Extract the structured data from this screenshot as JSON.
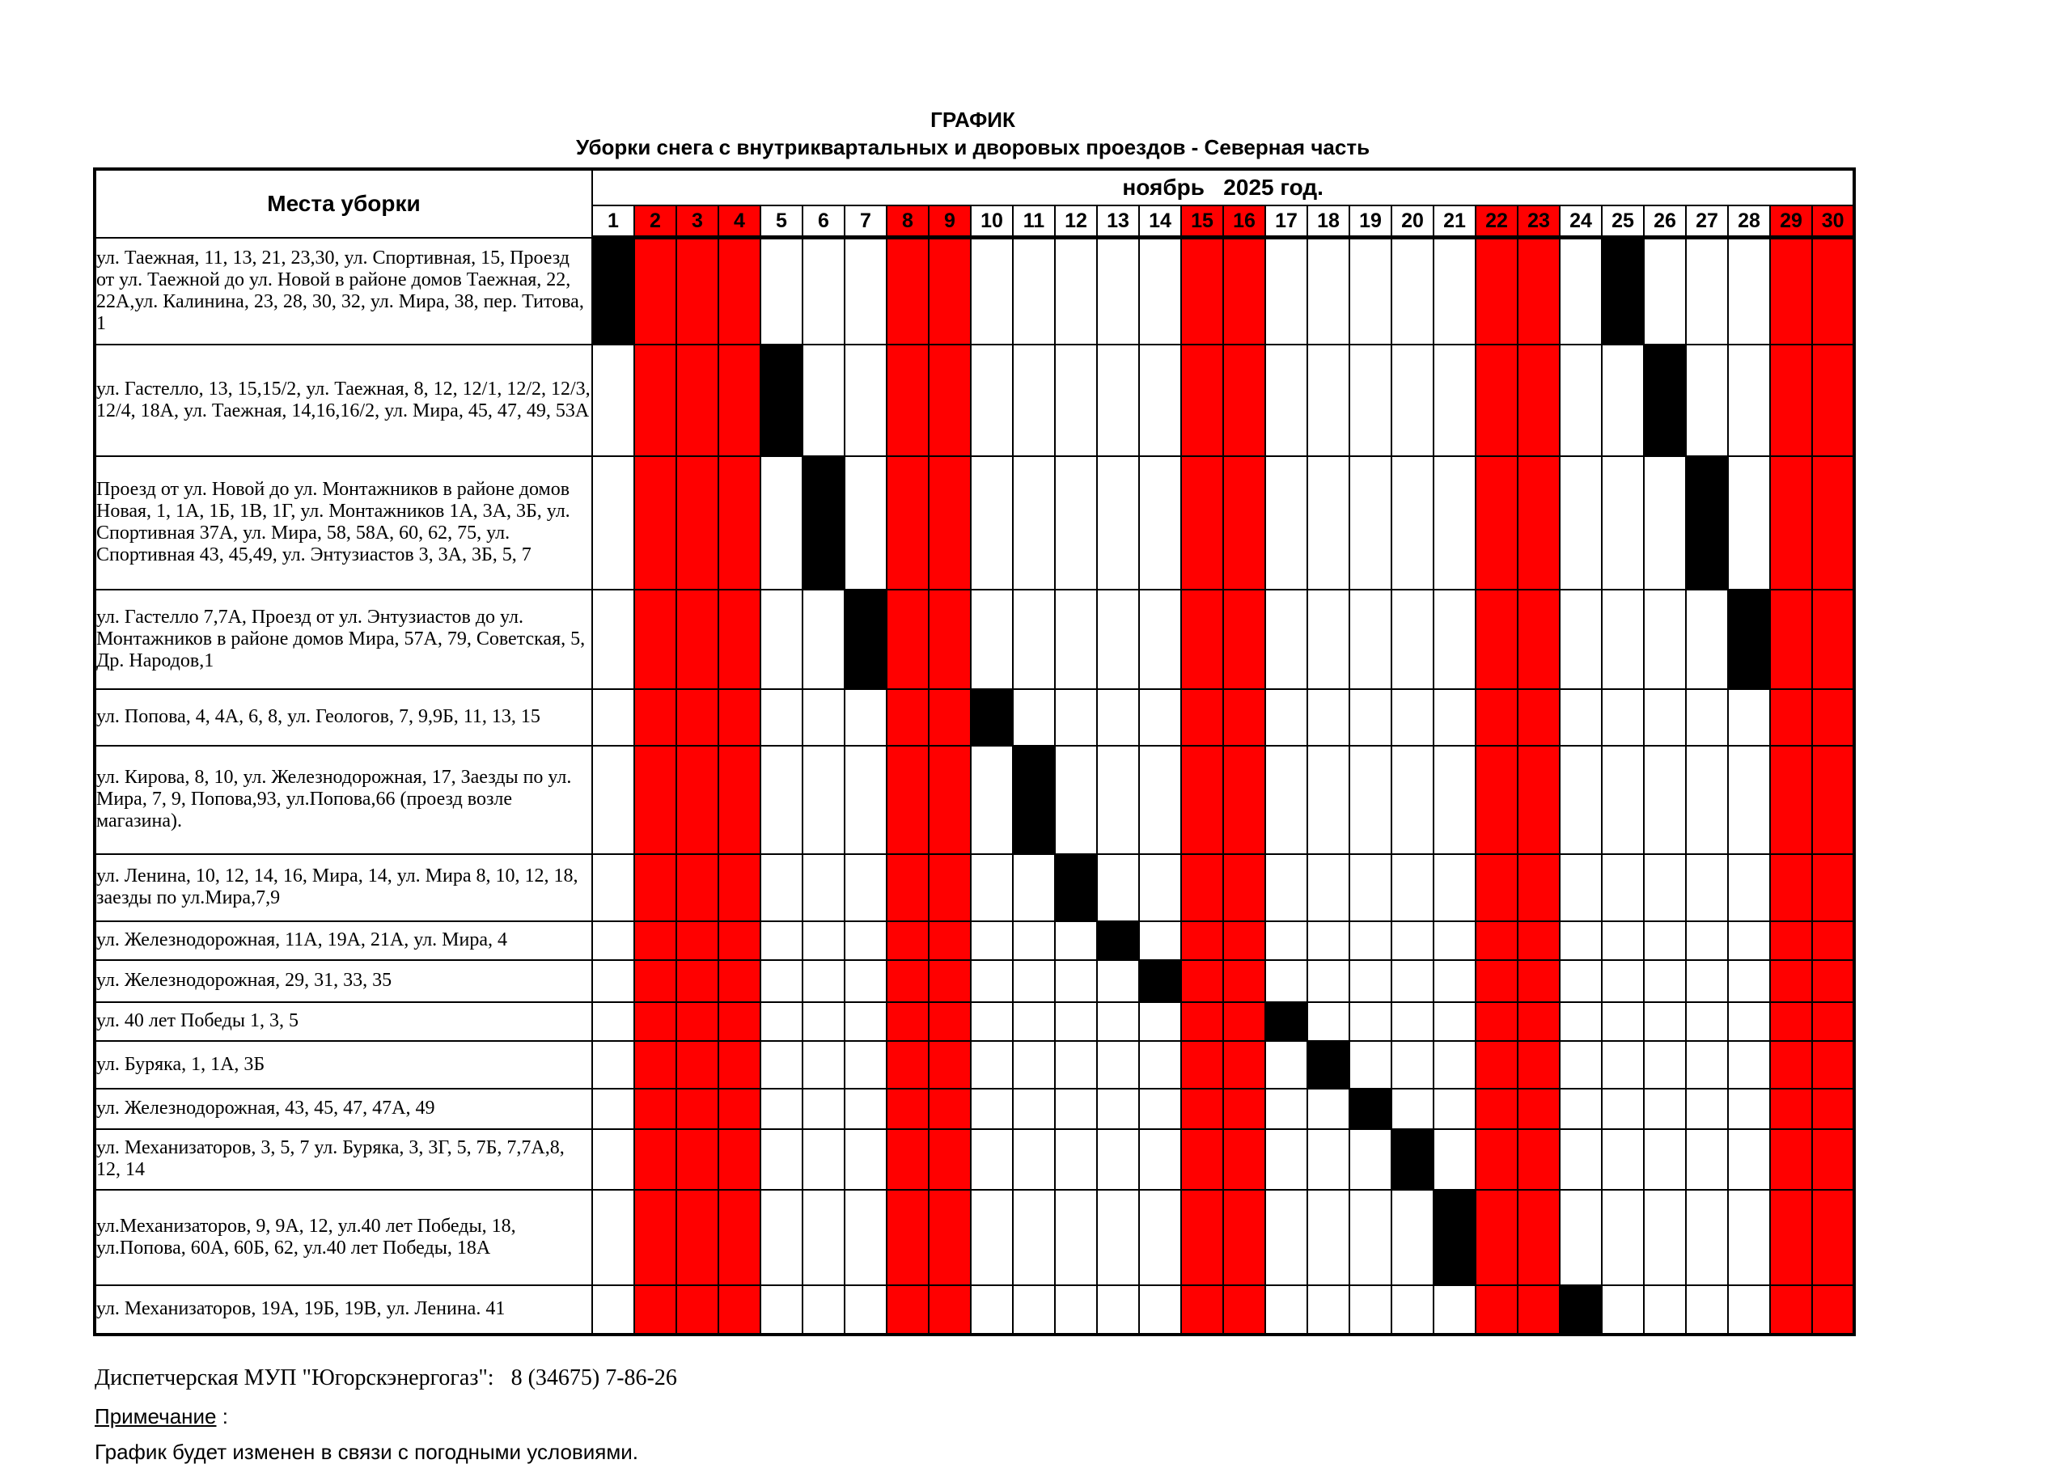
{
  "title": {
    "line1": "ГРАФИК",
    "line2": "Уборки  снега  с внутриквартальных и дворовых проездов - Северная часть"
  },
  "table": {
    "places_header": "Места уборки",
    "month_header": "ноябрь   2025 год.",
    "days": [
      1,
      2,
      3,
      4,
      5,
      6,
      7,
      8,
      9,
      10,
      11,
      12,
      13,
      14,
      15,
      16,
      17,
      18,
      19,
      20,
      21,
      22,
      23,
      24,
      25,
      26,
      27,
      28,
      29,
      30
    ],
    "weekend_days": [
      2,
      3,
      4,
      8,
      9,
      15,
      16,
      22,
      23,
      29,
      30
    ],
    "rows": [
      {
        "label": "ул. Таежная, 11, 13, 21, 23,30,  ул. Спортивная, 15, Проезд от ул. Таежной до ул. Новой в районе домов Таежная, 22, 22А,ул. Калинина, 23, 28, 30, 32, ул. Мира, 38, пер. Титова, 1",
        "scheduled_days": [
          1,
          25
        ]
      },
      {
        "label": "ул. Гастелло, 13, 15,15/2, ул. Таежная, 8, 12, 12/1, 12/2, 12/3, 12/4, 18А, ул. Таежная, 14,16,16/2, ул. Мира, 45, 47, 49, 53А",
        "scheduled_days": [
          5,
          26
        ]
      },
      {
        "label": "Проезд от ул. Новой до ул. Монтажников в районе домов Новая, 1, 1А, 1Б, 1В, 1Г, ул. Монтажников 1А, 3А, 3Б, ул. Спортивная 37А, ул. Мира, 58, 58А, 60, 62, 75, ул. Спортивная 43, 45,49, ул. Энтузиастов 3, 3А, 3Б, 5, 7",
        "scheduled_days": [
          6,
          27
        ]
      },
      {
        "label": "ул. Гастелло 7,7А, Проезд от ул. Энтузиастов до ул. Монтажников в районе домов Мира, 57А, 79, Советская, 5, Др. Народов,1",
        "scheduled_days": [
          7,
          28
        ]
      },
      {
        "label": "ул. Попова, 4, 4А, 6, 8, ул. Геологов, 7, 9,9Б, 11, 13, 15",
        "scheduled_days": [
          10
        ]
      },
      {
        "label": "ул. Кирова, 8, 10, ул. Железнодорожная, 17, Заезды по ул. Мира, 7, 9,  Попова,93, ул.Попова,66 (проезд возле магазина).",
        "scheduled_days": [
          11
        ]
      },
      {
        "label": "ул. Ленина, 10, 12, 14, 16, Мира, 14, ул. Мира 8, 10, 12, 18, заезды по ул.Мира,7,9",
        "scheduled_days": [
          12
        ]
      },
      {
        "label": "ул. Железнодорожная, 11А, 19А, 21А, ул. Мира, 4",
        "scheduled_days": [
          13
        ]
      },
      {
        "label": "ул. Железнодорожная, 29, 31, 33, 35",
        "scheduled_days": [
          14
        ]
      },
      {
        "label": "ул. 40 лет Победы 1, 3, 5",
        "scheduled_days": [
          17
        ]
      },
      {
        "label": "ул. Буряка, 1, 1А, 3Б",
        "scheduled_days": [
          18
        ]
      },
      {
        "label": "ул. Железнодорожная, 43, 45, 47, 47А, 49",
        "scheduled_days": [
          19
        ]
      },
      {
        "label": "ул. Механизаторов, 3, 5, 7 ул. Буряка, 3, 3Г, 5, 7Б, 7,7А,8, 12, 14",
        "scheduled_days": [
          20
        ]
      },
      {
        "label": "ул.Механизаторов, 9, 9А, 12, ул.40 лет Победы, 18, ул.Попова, 60А, 60Б, 62, ул.40 лет Победы, 18А",
        "scheduled_days": [
          21
        ]
      },
      {
        "label": "ул. Механизаторов, 19А, 19Б, 19В, ул. Ленина. 41",
        "scheduled_days": [
          24
        ]
      }
    ]
  },
  "footer": {
    "dispatcher": "Диспетчерская МУП \"Югорскэнергогаз\":   8 (34675) 7-86-26",
    "note_label": "Примечание",
    "note_colon": " :",
    "note_text": "График будет изменен в связи с погодными условиями."
  },
  "colors": {
    "weekend": "#ff0000",
    "scheduled": "#000000"
  }
}
